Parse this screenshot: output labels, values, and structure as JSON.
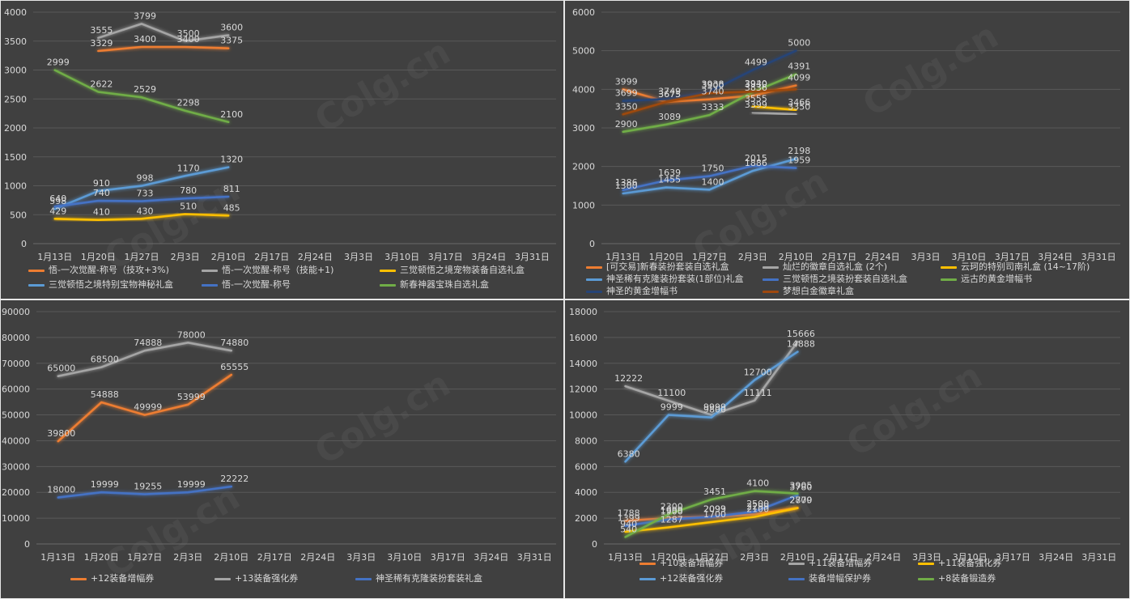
{
  "watermark": "Colg.cn",
  "chart_data": [
    {
      "type": "line",
      "categories": [
        "1月13日",
        "1月20日",
        "1月27日",
        "2月3日",
        "2月10日",
        "2月17日",
        "2月24日",
        "3月3日",
        "3月10日",
        "3月17日",
        "3月24日",
        "3月31日"
      ],
      "yticks": [
        0,
        500,
        1000,
        1500,
        2000,
        2500,
        3000,
        3500,
        4000
      ],
      "ylim": [
        0,
        4000
      ],
      "legend_position": "bottom",
      "series": [
        {
          "name": "悟-一次觉醒-称号（技攻+3%)",
          "color": "#ed7d31",
          "values": [
            null,
            3329,
            3400,
            3400,
            3375,
            null,
            null,
            null,
            null,
            null,
            null,
            null
          ],
          "labels": [
            "",
            "3329",
            "3400",
            "3400",
            "3375"
          ]
        },
        {
          "name": "悟-一次觉醒-称号（技能+1)",
          "color": "#a5a5a5",
          "values": [
            null,
            3555,
            3799,
            3500,
            3600,
            null,
            null,
            null,
            null,
            null,
            null,
            null
          ],
          "labels": [
            "",
            "3555",
            "3799",
            "3500",
            "3600"
          ]
        },
        {
          "name": "三觉顿悟之境宠物装备自选礼盒",
          "color": "#ffc000",
          "values": [
            429,
            410,
            430,
            510,
            485,
            null,
            null,
            null,
            null,
            null,
            null,
            null
          ],
          "labels": [
            "429",
            "410",
            "430",
            "510",
            "485"
          ]
        },
        {
          "name": "三觉顿悟之境特别宝物神秘礼盒",
          "color": "#5b9bd5",
          "values": [
            598,
            910,
            998,
            1170,
            1320,
            null,
            null,
            null,
            null,
            null,
            null,
            null
          ],
          "labels": [
            "598",
            "910",
            "998",
            "1170",
            "1320"
          ]
        },
        {
          "name": "悟-一次觉醒-称号",
          "color": "#4472c4",
          "values": [
            640,
            740,
            733,
            780,
            811,
            null,
            null,
            null,
            null,
            null,
            null,
            null
          ],
          "labels": [
            "640",
            "740",
            "733",
            "780",
            "811"
          ]
        },
        {
          "name": "新春神器宝珠自选礼盒",
          "color": "#70ad47",
          "values": [
            2999,
            2622,
            2529,
            2298,
            2100,
            null,
            null,
            null,
            null,
            null,
            null,
            null
          ],
          "labels": [
            "2999",
            "2622",
            "2529",
            "2298",
            "2100"
          ]
        }
      ]
    },
    {
      "type": "line",
      "categories": [
        "1月13日",
        "1月20日",
        "1月27日",
        "2月3日",
        "2月10日",
        "2月17日",
        "2月24日",
        "3月3日",
        "3月10日",
        "3月17日",
        "3月24日",
        "3月31日"
      ],
      "yticks": [
        0,
        1000,
        2000,
        3000,
        4000,
        5000,
        6000
      ],
      "ylim": [
        0,
        6000
      ],
      "legend_position": "bottom",
      "series": [
        {
          "name": "[可交易]新春装扮套装自选礼盒",
          "color": "#ed7d31",
          "values": [
            3999,
            3675,
            3740,
            3836,
            4099,
            null,
            null,
            null,
            null,
            null,
            null,
            null
          ],
          "labels": [
            "3999",
            "3675",
            "3740",
            "3836",
            "4099"
          ]
        },
        {
          "name": "灿烂的徽章自选礼盒 (2个)",
          "color": "#a5a5a5",
          "values": [
            null,
            null,
            null,
            3399,
            3350,
            null,
            null,
            null,
            null,
            null,
            null,
            null
          ],
          "labels": [
            "",
            "",
            "",
            "3399",
            "3350"
          ]
        },
        {
          "name": "云珂的特别司南礼盒 (14~17阶)",
          "color": "#ffc000",
          "values": [
            null,
            null,
            null,
            3555,
            3466,
            null,
            null,
            null,
            null,
            null,
            null,
            null
          ],
          "labels": [
            "",
            "",
            "",
            "3555",
            "3466"
          ]
        },
        {
          "name": "神圣稀有克隆装扮套装(1部位)礼盒",
          "color": "#5b9bd5",
          "values": [
            1300,
            1455,
            1400,
            1886,
            2198,
            null,
            null,
            null,
            null,
            null,
            null,
            null
          ],
          "labels": [
            "1300",
            "1455",
            "1400",
            "1886",
            "2198"
          ]
        },
        {
          "name": "三觉顿悟之境装扮套装自选礼盒",
          "color": "#4472c4",
          "values": [
            1386,
            1639,
            1750,
            2015,
            1959,
            null,
            null,
            null,
            null,
            null,
            null,
            null
          ],
          "labels": [
            "1386",
            "1639",
            "1750",
            "2015",
            "1959"
          ]
        },
        {
          "name": "远古的黄金增幅书",
          "color": "#70ad47",
          "values": [
            2900,
            3089,
            3333,
            3930,
            4391,
            null,
            null,
            null,
            null,
            null,
            null,
            null
          ],
          "labels": [
            "2900",
            "3089",
            "3333",
            "3930",
            "4391"
          ]
        },
        {
          "name": "神圣的黄金增幅书",
          "color": "#264478",
          "values": [
            3699,
            3749,
            3938,
            4499,
            5000,
            null,
            null,
            null,
            null,
            null,
            null,
            null
          ],
          "labels": [
            "3699",
            "3749",
            "3938",
            "4499",
            "5000"
          ]
        },
        {
          "name": "梦想白金徽章礼盒",
          "color": "#9e480e",
          "values": [
            3350,
            3673,
            3900,
            3940,
            4000,
            null,
            null,
            null,
            null,
            null,
            null,
            null
          ],
          "labels": [
            "3350",
            "3673",
            "3900",
            "3940",
            ""
          ]
        }
      ]
    },
    {
      "type": "line",
      "categories": [
        "1月13日",
        "1月20日",
        "1月27日",
        "2月3日",
        "2月10日",
        "2月17日",
        "2月24日",
        "3月3日",
        "3月10日",
        "3月17日",
        "3月24日",
        "3月31日"
      ],
      "yticks": [
        0,
        10000,
        20000,
        30000,
        40000,
        50000,
        60000,
        70000,
        80000,
        90000
      ],
      "ylim": [
        0,
        90000
      ],
      "legend_position": "bottom",
      "series": [
        {
          "name": "+12装备增幅券",
          "color": "#ed7d31",
          "values": [
            39800,
            54888,
            49999,
            53999,
            65555,
            null,
            null,
            null,
            null,
            null,
            null,
            null
          ],
          "labels": [
            "39800",
            "54888",
            "49999",
            "53999",
            "65555"
          ]
        },
        {
          "name": "+13装备强化券",
          "color": "#a5a5a5",
          "values": [
            65000,
            68500,
            74888,
            78000,
            74880,
            null,
            null,
            null,
            null,
            null,
            null,
            null
          ],
          "labels": [
            "65000",
            "68500",
            "74888",
            "78000",
            "74880"
          ]
        },
        {
          "name": "神圣稀有克隆装扮套装礼盒",
          "color": "#4472c4",
          "values": [
            18000,
            19999,
            19255,
            19999,
            22222,
            null,
            null,
            null,
            null,
            null,
            null,
            null
          ],
          "labels": [
            "18000",
            "19999",
            "19255",
            "19999",
            "22222"
          ]
        }
      ]
    },
    {
      "type": "line",
      "categories": [
        "1月13日",
        "1月20日",
        "1月27日",
        "2月3日",
        "2月10日",
        "2月17日",
        "2月24日",
        "3月3日",
        "3月10日",
        "3月17日",
        "3月24日",
        "3月31日"
      ],
      "yticks": [
        0,
        2000,
        4000,
        6000,
        8000,
        10000,
        12000,
        14000,
        16000,
        18000
      ],
      "ylim": [
        0,
        18000
      ],
      "legend_position": "bottom",
      "series": [
        {
          "name": "+10装备增幅券",
          "color": "#ed7d31",
          "values": [
            1788,
            1999,
            2093,
            2299,
            2800,
            null,
            null,
            null,
            null,
            null,
            null,
            null
          ],
          "labels": [
            "1788",
            "1999",
            "2093",
            "2299",
            "2800"
          ]
        },
        {
          "name": "+11装备增幅券",
          "color": "#a5a5a5",
          "values": [
            12222,
            11100,
            9999,
            11111,
            15666,
            null,
            null,
            null,
            null,
            null,
            null,
            null
          ],
          "labels": [
            "12222",
            "11100",
            "9999",
            "11111",
            "15666"
          ]
        },
        {
          "name": "+11装备强化券",
          "color": "#ffc000",
          "values": [
            940,
            1287,
            1700,
            2100,
            2779,
            null,
            null,
            null,
            null,
            null,
            null,
            null
          ],
          "labels": [
            "940",
            "1287",
            "1700",
            "2100",
            "2779"
          ]
        },
        {
          "name": "+12装备强化券",
          "color": "#5b9bd5",
          "values": [
            6380,
            9999,
            9800,
            12700,
            14888,
            null,
            null,
            null,
            null,
            null,
            null,
            null
          ],
          "labels": [
            "6380",
            "9999",
            "9800",
            "12700",
            "14888"
          ]
        },
        {
          "name": "装备增幅保护券",
          "color": "#4472c4",
          "values": [
            1399,
            1900,
            2099,
            2500,
            3780,
            null,
            null,
            null,
            null,
            null,
            null,
            null
          ],
          "labels": [
            "1399",
            "1900",
            "2099",
            "2500",
            "3780"
          ]
        },
        {
          "name": "+8装备锻造券",
          "color": "#70ad47",
          "values": [
            540,
            2300,
            3451,
            4100,
            3905,
            null,
            null,
            null,
            null,
            null,
            null,
            null
          ],
          "labels": [
            "540",
            "2300",
            "3451",
            "4100",
            "3905"
          ]
        }
      ]
    }
  ]
}
